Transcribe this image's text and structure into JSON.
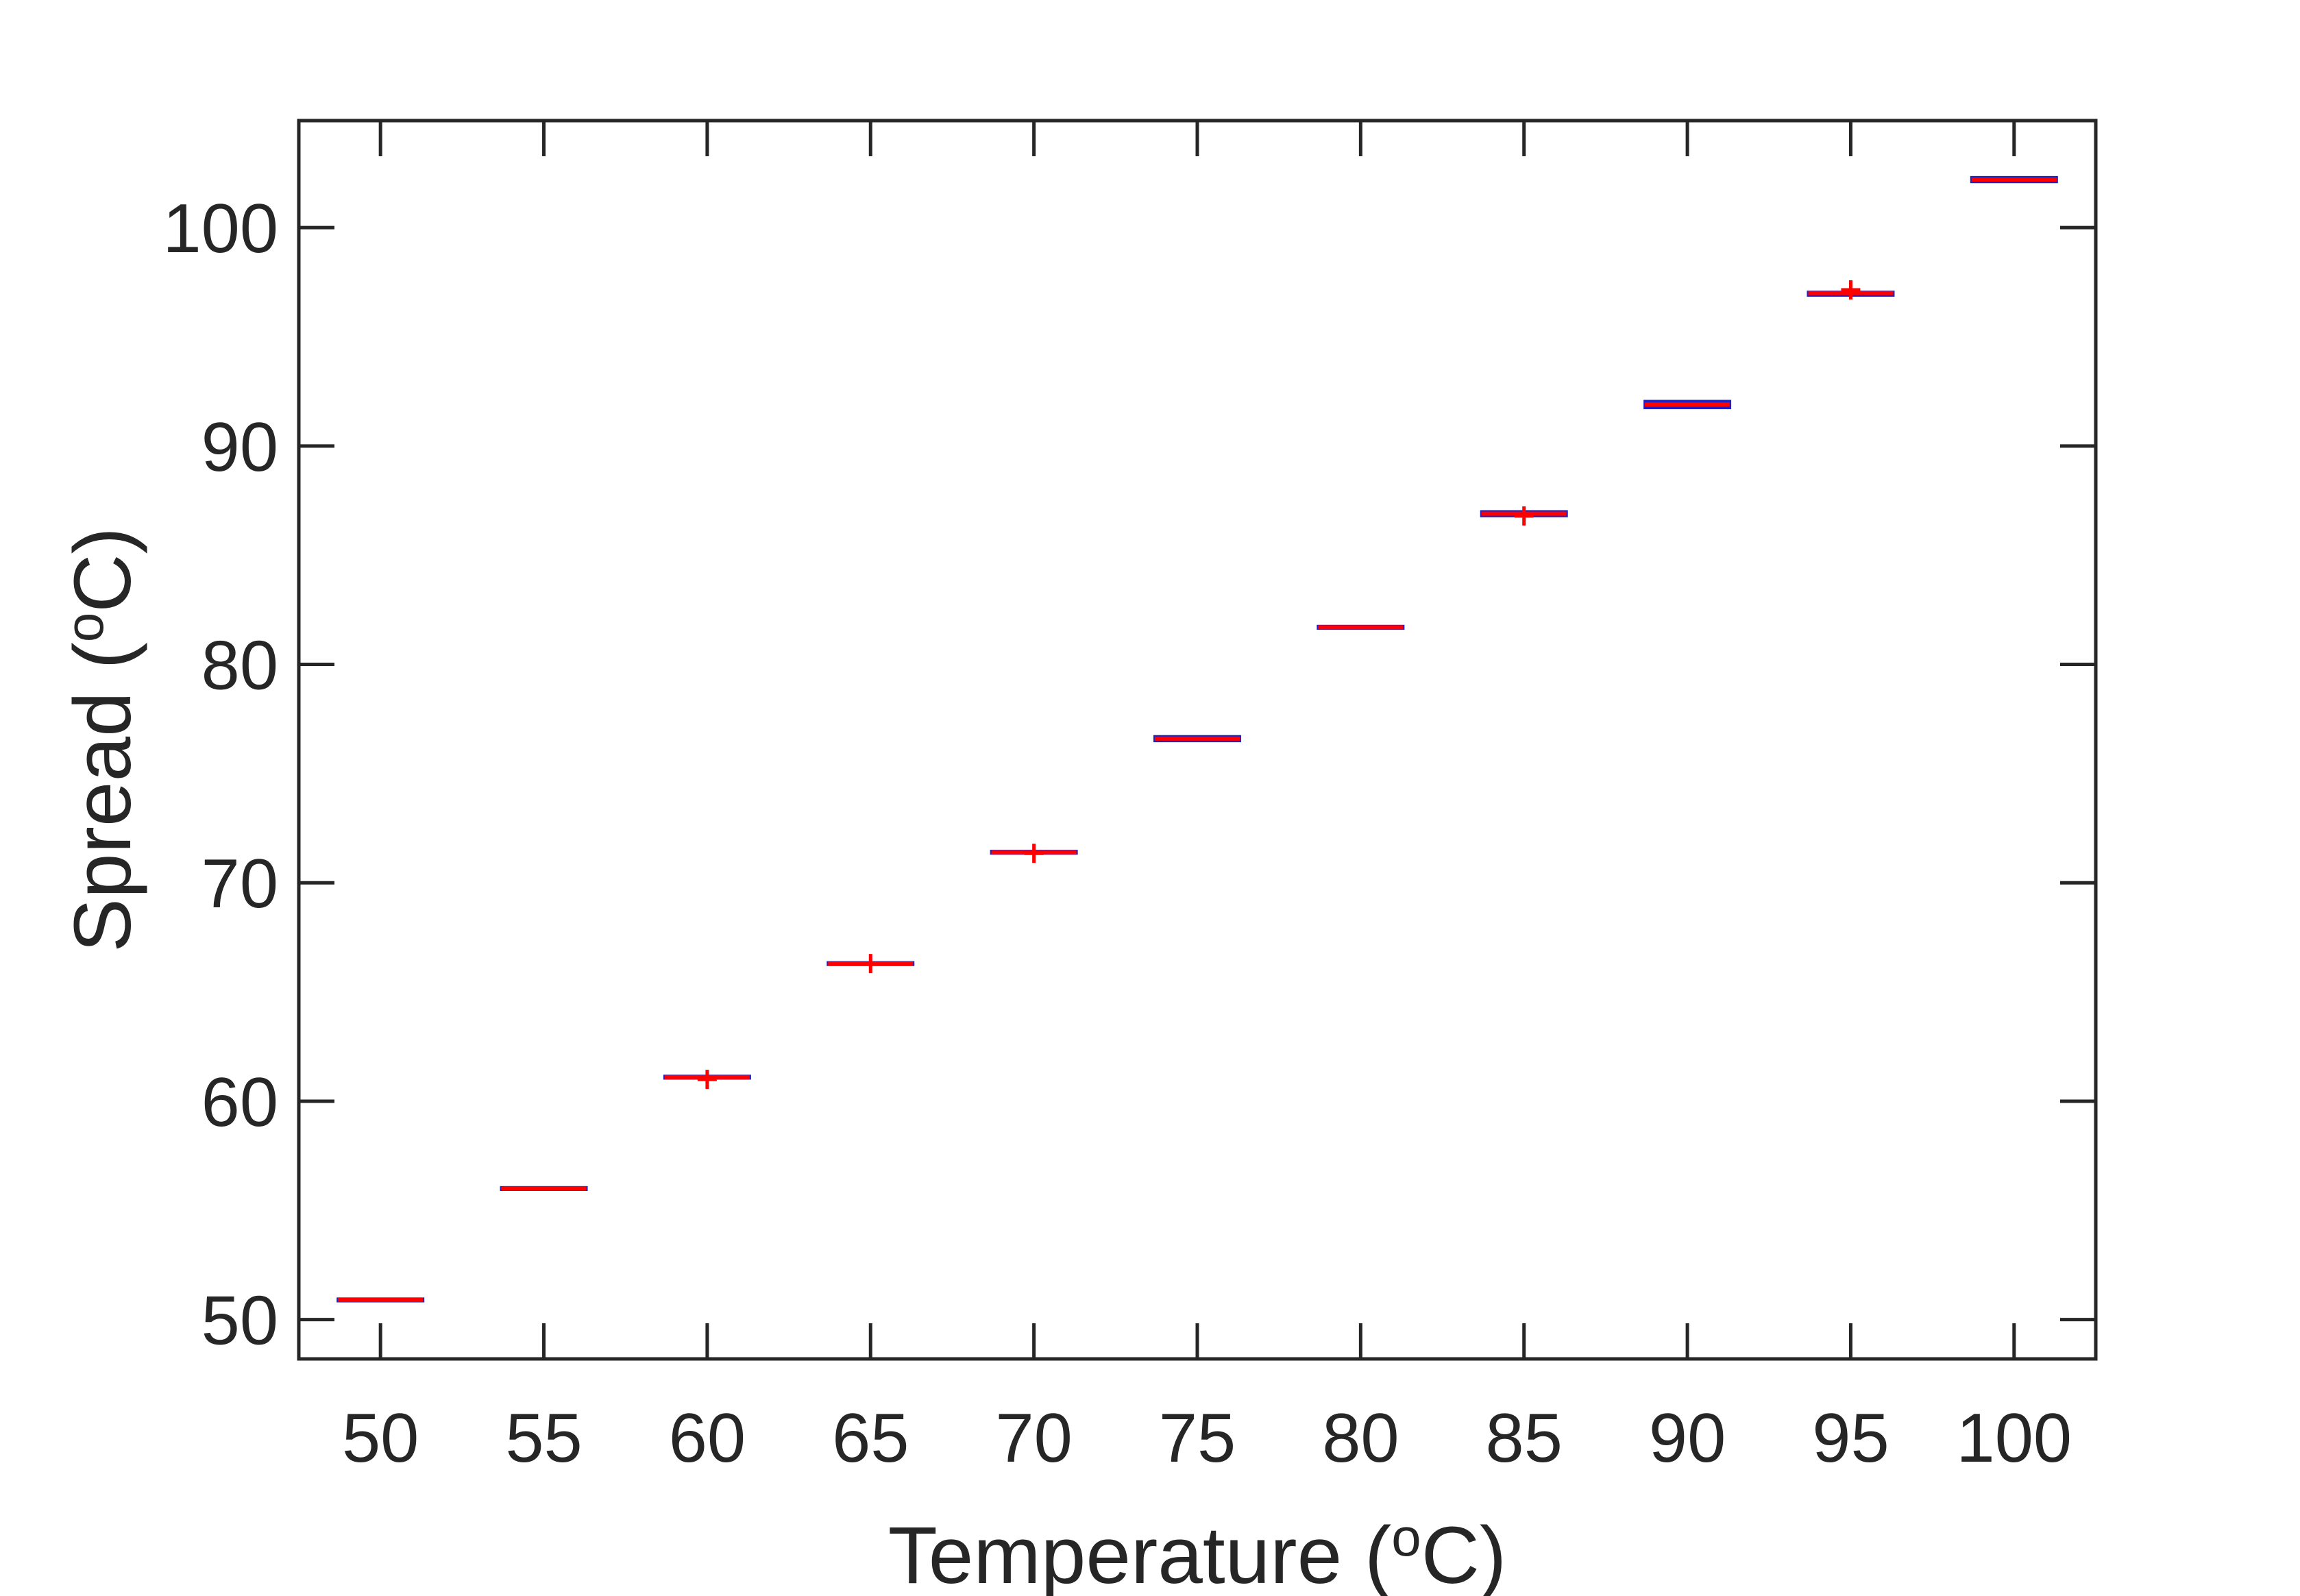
{
  "chart_data": {
    "type": "box",
    "title": "",
    "xlabel": {
      "prefix": "Temperature (",
      "sup": "o",
      "suffix": "C)"
    },
    "ylabel": {
      "prefix": "Spread (",
      "sup": "o",
      "suffix": "C)"
    },
    "xlim": [
      47.5,
      102.5
    ],
    "ylim": [
      48.2,
      104.9
    ],
    "grid": false,
    "legend": "none",
    "x_tick_labels": [
      "50",
      "55",
      "60",
      "65",
      "70",
      "75",
      "80",
      "85",
      "90",
      "95",
      "100"
    ],
    "y_ticks": [
      50,
      60,
      70,
      80,
      90,
      100
    ],
    "y_tick_labels": [
      "50",
      "60",
      "70",
      "80",
      "90",
      "100"
    ],
    "box_color": "#2020c0",
    "median_color": "#ff0000",
    "outlier_color": "#ff0000",
    "axis_color": "#262626",
    "boxes": [
      {
        "x": 50,
        "median": 50.9,
        "q1": 50.85,
        "q3": 50.95,
        "outliers": []
      },
      {
        "x": 55,
        "median": 56.0,
        "q1": 55.95,
        "q3": 56.05,
        "outliers": []
      },
      {
        "x": 60,
        "median": 61.1,
        "q1": 61.05,
        "q3": 61.15,
        "outliers": [
          61.0
        ]
      },
      {
        "x": 65,
        "median": 66.3,
        "q1": 66.25,
        "q3": 66.35,
        "outliers": [
          66.3
        ]
      },
      {
        "x": 70,
        "median": 71.4,
        "q1": 71.35,
        "q3": 71.45,
        "outliers": [
          71.35
        ]
      },
      {
        "x": 75,
        "median": 76.6,
        "q1": 76.5,
        "q3": 76.7,
        "outliers": []
      },
      {
        "x": 80,
        "median": 81.7,
        "q1": 81.65,
        "q3": 81.75,
        "outliers": []
      },
      {
        "x": 85,
        "median": 86.9,
        "q1": 86.8,
        "q3": 87.0,
        "outliers": [
          86.8
        ]
      },
      {
        "x": 90,
        "median": 91.9,
        "q1": 91.75,
        "q3": 92.05,
        "outliers": []
      },
      {
        "x": 95,
        "median": 97.0,
        "q1": 96.9,
        "q3": 97.05,
        "outliers": [
          97.15
        ]
      },
      {
        "x": 100,
        "median": 102.2,
        "q1": 102.1,
        "q3": 102.3,
        "outliers": []
      }
    ]
  }
}
